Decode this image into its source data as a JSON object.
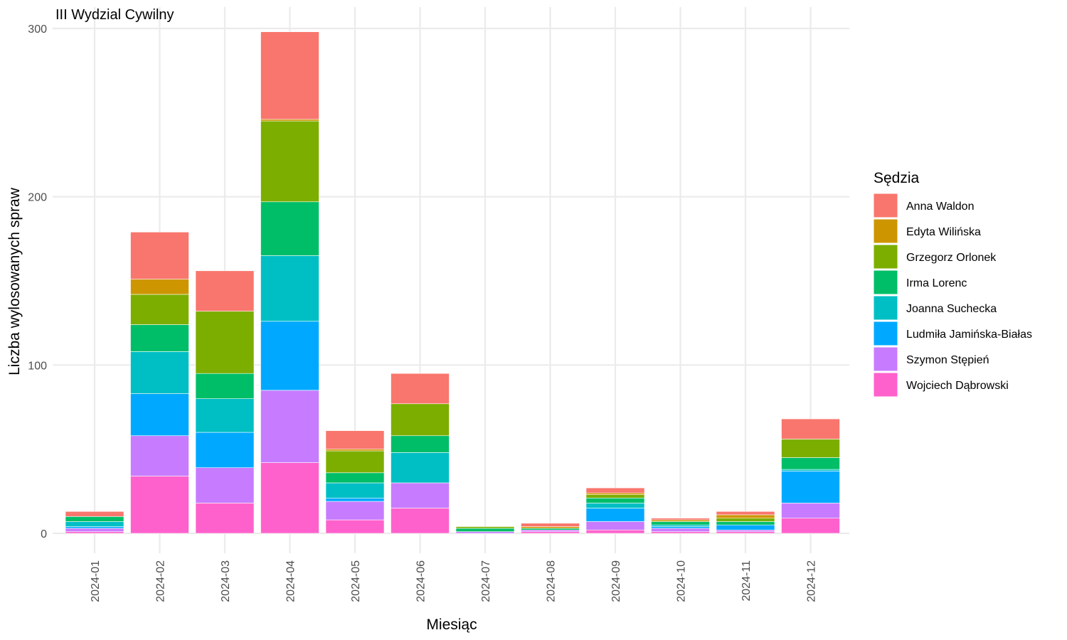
{
  "chart_data": {
    "type": "bar",
    "stacked": true,
    "title": "III Wydzial Cywilny",
    "xlabel": "Miesiąc",
    "ylabel": "Liczba wylosowanych spraw",
    "ylim": [
      0,
      300
    ],
    "yticks": [
      "0",
      "100",
      "200",
      "300"
    ],
    "grid": true,
    "legend_title": "Sędzia",
    "legend_position": "right",
    "categories": [
      "2024-01",
      "2024-02",
      "2024-03",
      "2024-04",
      "2024-05",
      "2024-06",
      "2024-07",
      "2024-08",
      "2024-09",
      "2024-10",
      "2024-11",
      "2024-12"
    ],
    "series": [
      {
        "name": "Wojciech Dąbrowski",
        "color": "#FF61CC",
        "values": [
          1,
          34,
          18,
          42,
          8,
          15,
          0,
          1,
          2,
          1,
          1,
          9
        ]
      },
      {
        "name": "Szymon Stępień",
        "color": "#C77CFF",
        "values": [
          2,
          24,
          21,
          43,
          11,
          15,
          1,
          1,
          5,
          2,
          1,
          9
        ]
      },
      {
        "name": "Ludmiła Jamińska-Białas",
        "color": "#00A9FF",
        "values": [
          1,
          25,
          21,
          41,
          2,
          0,
          0,
          0,
          8,
          1,
          3,
          19
        ]
      },
      {
        "name": "Joanna Suchecka",
        "color": "#00BFC4",
        "values": [
          3,
          25,
          20,
          39,
          9,
          18,
          0,
          0,
          3,
          1,
          0,
          1
        ]
      },
      {
        "name": "Irma Lorenc",
        "color": "#00BE67",
        "values": [
          3,
          16,
          15,
          32,
          6,
          10,
          2,
          1,
          3,
          2,
          2,
          7
        ]
      },
      {
        "name": "Grzegorz Orlonek",
        "color": "#7CAE00",
        "values": [
          0,
          18,
          37,
          48,
          13,
          19,
          1,
          0,
          2,
          0,
          2,
          11
        ]
      },
      {
        "name": "Edyta Wilińska",
        "color": "#CD9600",
        "values": [
          0,
          9,
          0,
          1,
          1,
          0,
          0,
          1,
          1,
          1,
          2,
          0
        ]
      },
      {
        "name": "Anna Waldon",
        "color": "#F8766D",
        "values": [
          3,
          28,
          24,
          52,
          11,
          18,
          0,
          2,
          3,
          1,
          2,
          12
        ]
      }
    ]
  }
}
